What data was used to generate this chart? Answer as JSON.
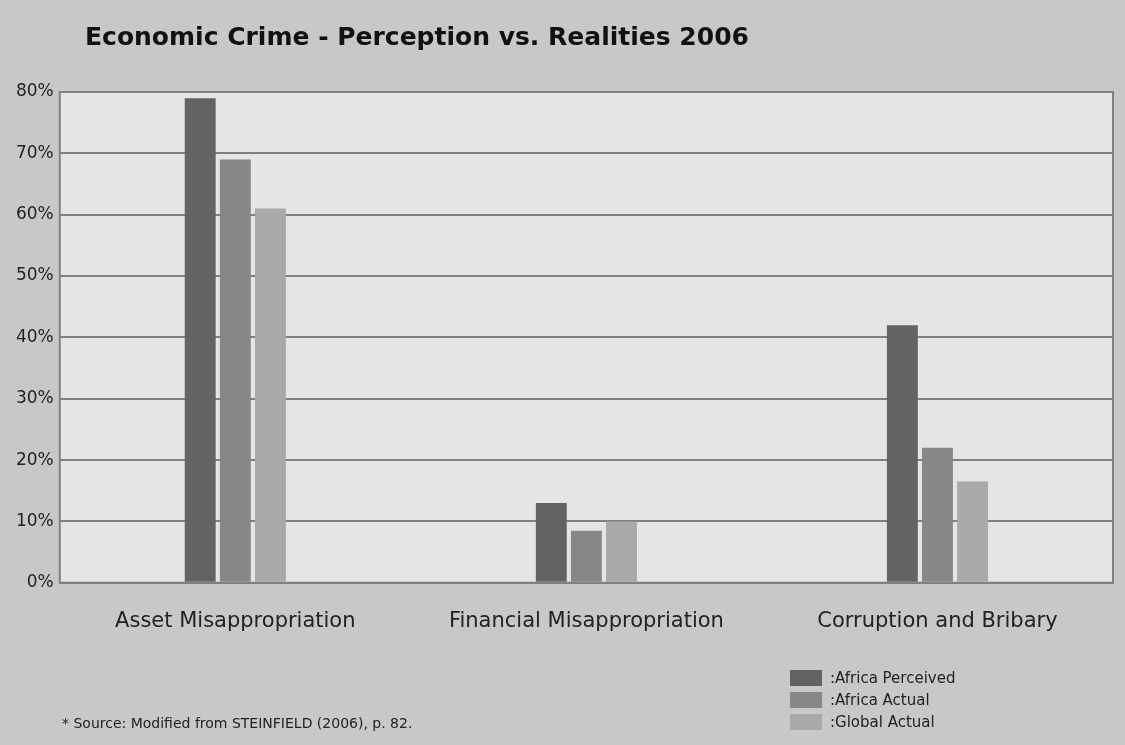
{
  "chart_data": {
    "type": "bar",
    "title": "Economic Crime - Perception vs. Realities 2006",
    "categories": [
      "Asset Misappropriation",
      "Financial Misappropriation",
      "Corruption and Bribary"
    ],
    "series": [
      {
        "name": ":Africa Perceived",
        "color": "#636365",
        "values": [
          79,
          13,
          42
        ]
      },
      {
        "name": ":Africa Actual",
        "color": "#868789",
        "values": [
          69,
          8.5,
          22
        ]
      },
      {
        "name": ":Global Actual",
        "color": "#a8a9ab",
        "values": [
          61,
          10,
          16.5
        ]
      }
    ],
    "ylim": [
      0,
      80
    ],
    "yticks": [
      {
        "value": 0,
        "label": "0%"
      },
      {
        "value": 10,
        "label": "10%"
      },
      {
        "value": 20,
        "label": "20%"
      },
      {
        "value": 30,
        "label": "30%"
      },
      {
        "value": 40,
        "label": "40%"
      },
      {
        "value": 50,
        "label": "50%"
      },
      {
        "value": 60,
        "label": "60%"
      },
      {
        "value": 70,
        "label": "70%"
      },
      {
        "value": 80,
        "label": "80%"
      }
    ],
    "grid": "y",
    "legend": "bottom right",
    "annotations": [
      "* Source: Modified from STEINFIELD (2006), p. 82."
    ]
  }
}
